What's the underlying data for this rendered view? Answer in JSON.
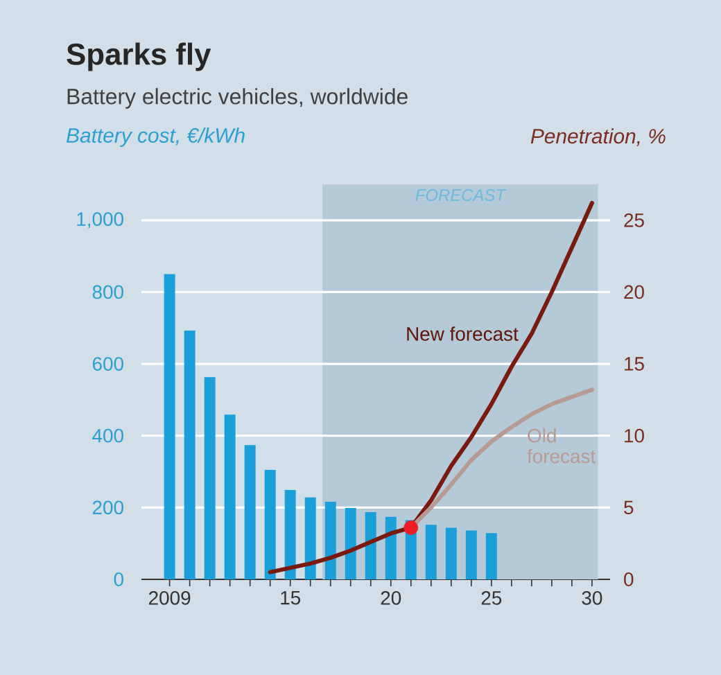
{
  "chart_data": {
    "type": "bar",
    "title": "Sparks fly",
    "subtitle": "Battery electric vehicles, worldwide",
    "ylabel": "Battery cost, €/kWh",
    "y2label": "Penetration, %",
    "series": [
      {
        "color": "#1a9fd9",
        "x": [
          2009,
          2010,
          2011,
          2012,
          2013,
          2014,
          2015,
          2016,
          2017,
          2018,
          2019,
          2020,
          2021,
          2022,
          2023,
          2024,
          2025
        ],
        "values": [
          850,
          693,
          563,
          459,
          374,
          305,
          249,
          228,
          216,
          199,
          187,
          174,
          165,
          152,
          144,
          136,
          129
        ]
      },
      {
        "type": "line",
        "name": "New forecast",
        "axis": "y2",
        "color": "#7a1a0e",
        "x": [
          2014,
          2015,
          2016,
          2017,
          2018,
          2019,
          2020,
          2021,
          2022,
          2023,
          2024,
          2025,
          2026,
          2027,
          2028,
          2029,
          2030
        ],
        "values": [
          0.5,
          0.8,
          1.1,
          1.5,
          2.0,
          2.6,
          3.2,
          3.6,
          5.5,
          7.9,
          9.9,
          12.2,
          14.8,
          17.1,
          20.0,
          23.1,
          26.2
        ]
      },
      {
        "type": "line",
        "name": "Old forecast",
        "axis": "y2",
        "color": "#b89a95",
        "x": [
          2021,
          2022,
          2023,
          2024,
          2025,
          2026,
          2027,
          2028,
          2030
        ],
        "values": [
          3.6,
          5.0,
          6.6,
          8.3,
          9.6,
          10.6,
          11.5,
          12.2,
          13.2
        ]
      },
      {
        "type": "scatter",
        "axis": "y2",
        "color": "#ee1c25",
        "marker": "circle",
        "x": [
          2021
        ],
        "values": [
          3.6
        ]
      }
    ],
    "xlim": [
      2007.6,
      2030.9
    ],
    "ylim": [
      0,
      1100
    ],
    "y2lim": [
      0,
      27.5
    ],
    "xticks": [
      2009,
      {
        "value": 2010,
        "label": null
      },
      {
        "value": 2011,
        "label": null
      },
      {
        "value": 2012,
        "label": null
      },
      {
        "value": 2013,
        "label": null
      },
      {
        "value": 2014,
        "label": null
      },
      {
        "value": 2015,
        "label": "15"
      },
      {
        "value": 2016,
        "label": null
      },
      {
        "value": 2017,
        "label": null
      },
      {
        "value": 2018,
        "label": null
      },
      {
        "value": 2019,
        "label": null
      },
      {
        "value": 2020,
        "label": "20"
      },
      {
        "value": 2021,
        "label": null
      },
      {
        "value": 2022,
        "label": null
      },
      {
        "value": 2023,
        "label": null
      },
      {
        "value": 2024,
        "label": null
      },
      {
        "value": 2025,
        "label": "25"
      },
      {
        "value": 2026,
        "label": null
      },
      {
        "value": 2027,
        "label": null
      },
      {
        "value": 2028,
        "label": null
      },
      {
        "value": 2029,
        "label": null
      },
      {
        "value": 2030,
        "label": "30"
      }
    ],
    "yticks": [
      0,
      200,
      400,
      600,
      800,
      {
        "value": 1000,
        "label": "1,000"
      }
    ],
    "y2ticks": [
      0,
      5,
      10,
      15,
      20,
      25
    ],
    "grid": "y",
    "bands": [
      {
        "axis": "x",
        "from": 2016.6,
        "to": 2030.3,
        "label": "FORECAST",
        "color": "#b4cad8"
      }
    ]
  }
}
